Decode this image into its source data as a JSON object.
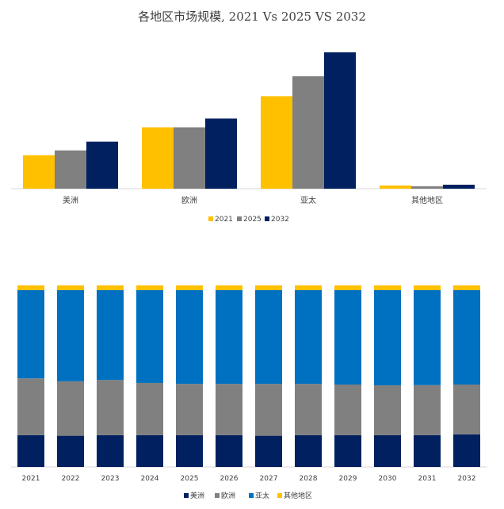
{
  "chart_data": [
    {
      "type": "bar",
      "title": "各地区市场规模, 2021 Vs 2025 VS 2032",
      "categories": [
        "美洲",
        "欧洲",
        "亚太",
        "其他地区"
      ],
      "series": [
        {
          "name": "2021",
          "color": "#ffc000",
          "values": [
            42,
            77,
            116,
            4
          ]
        },
        {
          "name": "2025",
          "color": "#808080",
          "values": [
            48,
            77,
            141,
            3
          ]
        },
        {
          "name": "2032",
          "color": "#002060",
          "values": [
            59,
            88,
            171,
            5
          ]
        }
      ],
      "ylim": [
        0,
        175
      ],
      "grid": false,
      "legend": "bottom"
    },
    {
      "type": "bar",
      "stacked": "percent",
      "categories": [
        "2021",
        "2022",
        "2023",
        "2024",
        "2025",
        "2026",
        "2027",
        "2028",
        "2029",
        "2030",
        "2031",
        "2032"
      ],
      "series": [
        {
          "name": "美洲",
          "color": "#002060",
          "values": [
            17.5,
            17.2,
            17.5,
            17.5,
            17.5,
            17.5,
            17.2,
            17.5,
            17.5,
            17.5,
            17.5,
            18.0
          ]
        },
        {
          "name": "欧洲",
          "color": "#808080",
          "values": [
            31.3,
            30.0,
            30.4,
            28.8,
            28.3,
            28.3,
            28.6,
            28.3,
            27.9,
            27.5,
            27.6,
            27.4
          ]
        },
        {
          "name": "亚太",
          "color": "#0070c0",
          "values": [
            48.6,
            50.2,
            49.5,
            51.1,
            51.6,
            51.6,
            51.6,
            51.6,
            52.0,
            52.4,
            52.3,
            52.0
          ]
        },
        {
          "name": "其他地区",
          "color": "#ffc000",
          "values": [
            2.6,
            2.6,
            2.6,
            2.6,
            2.6,
            2.6,
            2.6,
            2.6,
            2.6,
            2.6,
            2.6,
            2.6
          ]
        }
      ],
      "ylim": [
        0,
        100
      ],
      "grid": false,
      "legend": "bottom"
    }
  ]
}
